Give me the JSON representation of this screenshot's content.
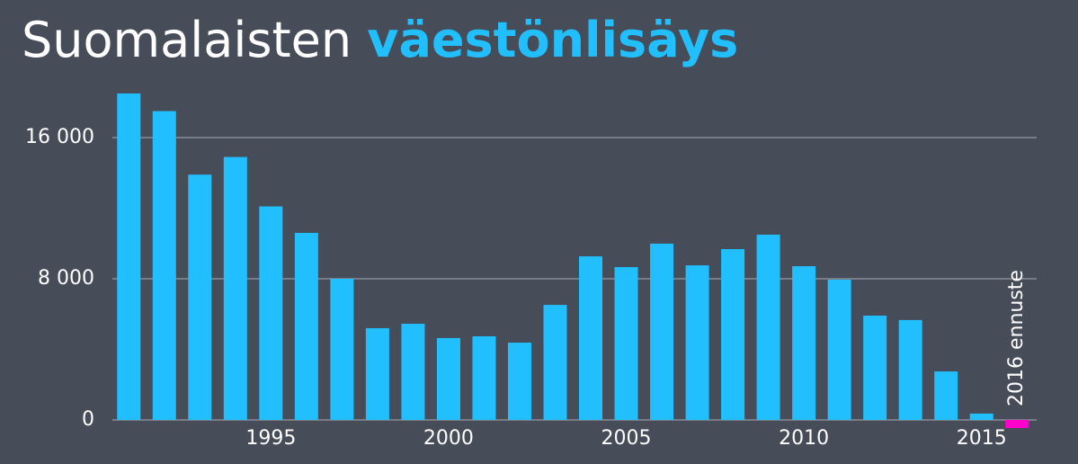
{
  "chart_data": {
    "type": "bar",
    "title": "Suomalaisten",
    "title_highlight": "väestönlisäys",
    "title_highlight_color": "#22bfff",
    "annotation": "2016 ennuste",
    "categories": [
      null,
      null,
      null,
      null,
      "1995",
      null,
      null,
      null,
      null,
      "2000",
      null,
      null,
      null,
      null,
      "2005",
      null,
      null,
      null,
      null,
      "2010",
      null,
      null,
      null,
      null,
      "2015",
      null
    ],
    "values": [
      18500,
      17500,
      13900,
      14900,
      12100,
      10600,
      8000,
      5200,
      5450,
      4640,
      4740,
      4380,
      6520,
      9270,
      8660,
      9990,
      8760,
      9680,
      10500,
      8710,
      7950,
      5910,
      5660,
      2750,
      360,
      -460
    ],
    "colors": [
      "#22bfff",
      "#22bfff",
      "#22bfff",
      "#22bfff",
      "#22bfff",
      "#22bfff",
      "#22bfff",
      "#22bfff",
      "#22bfff",
      "#22bfff",
      "#22bfff",
      "#22bfff",
      "#22bfff",
      "#22bfff",
      "#22bfff",
      "#22bfff",
      "#22bfff",
      "#22bfff",
      "#22bfff",
      "#22bfff",
      "#22bfff",
      "#22bfff",
      "#22bfff",
      "#22bfff",
      "#22bfff",
      "#ff00cc"
    ],
    "ylim": [
      0,
      20000
    ],
    "yticks": [
      0,
      {
        "value": 8000,
        "label": "8 000"
      },
      {
        "value": 16000,
        "label": "16 000"
      }
    ],
    "grid": true
  }
}
